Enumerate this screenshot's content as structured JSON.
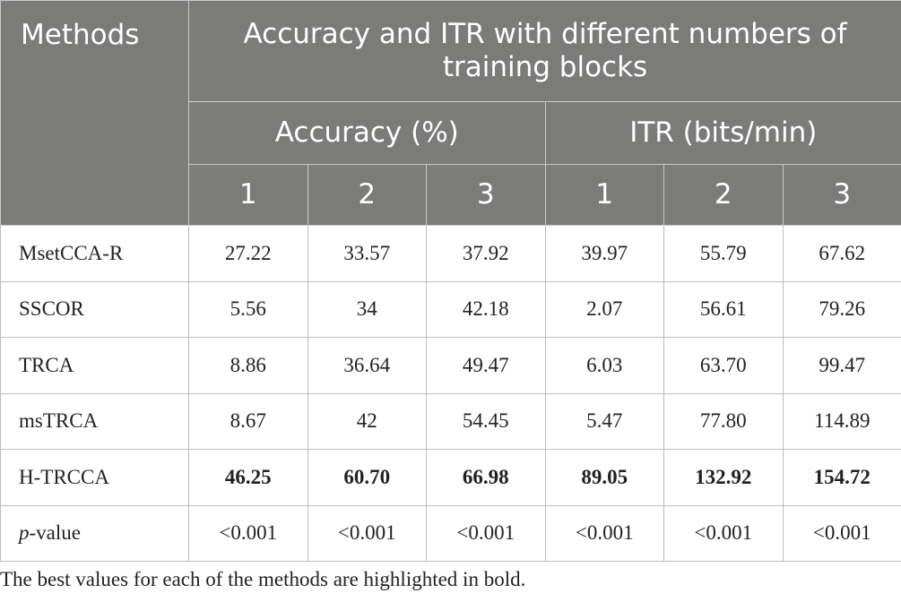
{
  "header": {
    "methods_label": "Methods",
    "group_title": "Accuracy and ITR with different numbers of training blocks",
    "accuracy_label": "Accuracy (%)",
    "itr_label": "ITR (bits/min)",
    "block_numbers": [
      "1",
      "2",
      "3",
      "1",
      "2",
      "3"
    ]
  },
  "rows": [
    {
      "method": "MsetCCA-R",
      "values": [
        "27.22",
        "33.57",
        "37.92",
        "39.97",
        "55.79",
        "67.62"
      ]
    },
    {
      "method": "SSCOR",
      "values": [
        "5.56",
        "34",
        "42.18",
        "2.07",
        "56.61",
        "79.26"
      ]
    },
    {
      "method": "TRCA",
      "values": [
        "8.86",
        "36.64",
        "49.47",
        "6.03",
        "63.70",
        "99.47"
      ]
    },
    {
      "method": "msTRCA",
      "values": [
        "8.67",
        "42",
        "54.45",
        "5.47",
        "77.80",
        "114.89"
      ]
    },
    {
      "method": "H-TRCCA",
      "values": [
        "46.25",
        "60.70",
        "66.98",
        "89.05",
        "132.92",
        "154.72"
      ]
    }
  ],
  "pvalue_row": {
    "label_italic": "p",
    "label_rest": "-value",
    "values": [
      "<0.001",
      "<0.001",
      "<0.001",
      "<0.001",
      "<0.001",
      "<0.001"
    ]
  },
  "footnote": "The best values for each of the methods are highlighted in bold."
}
